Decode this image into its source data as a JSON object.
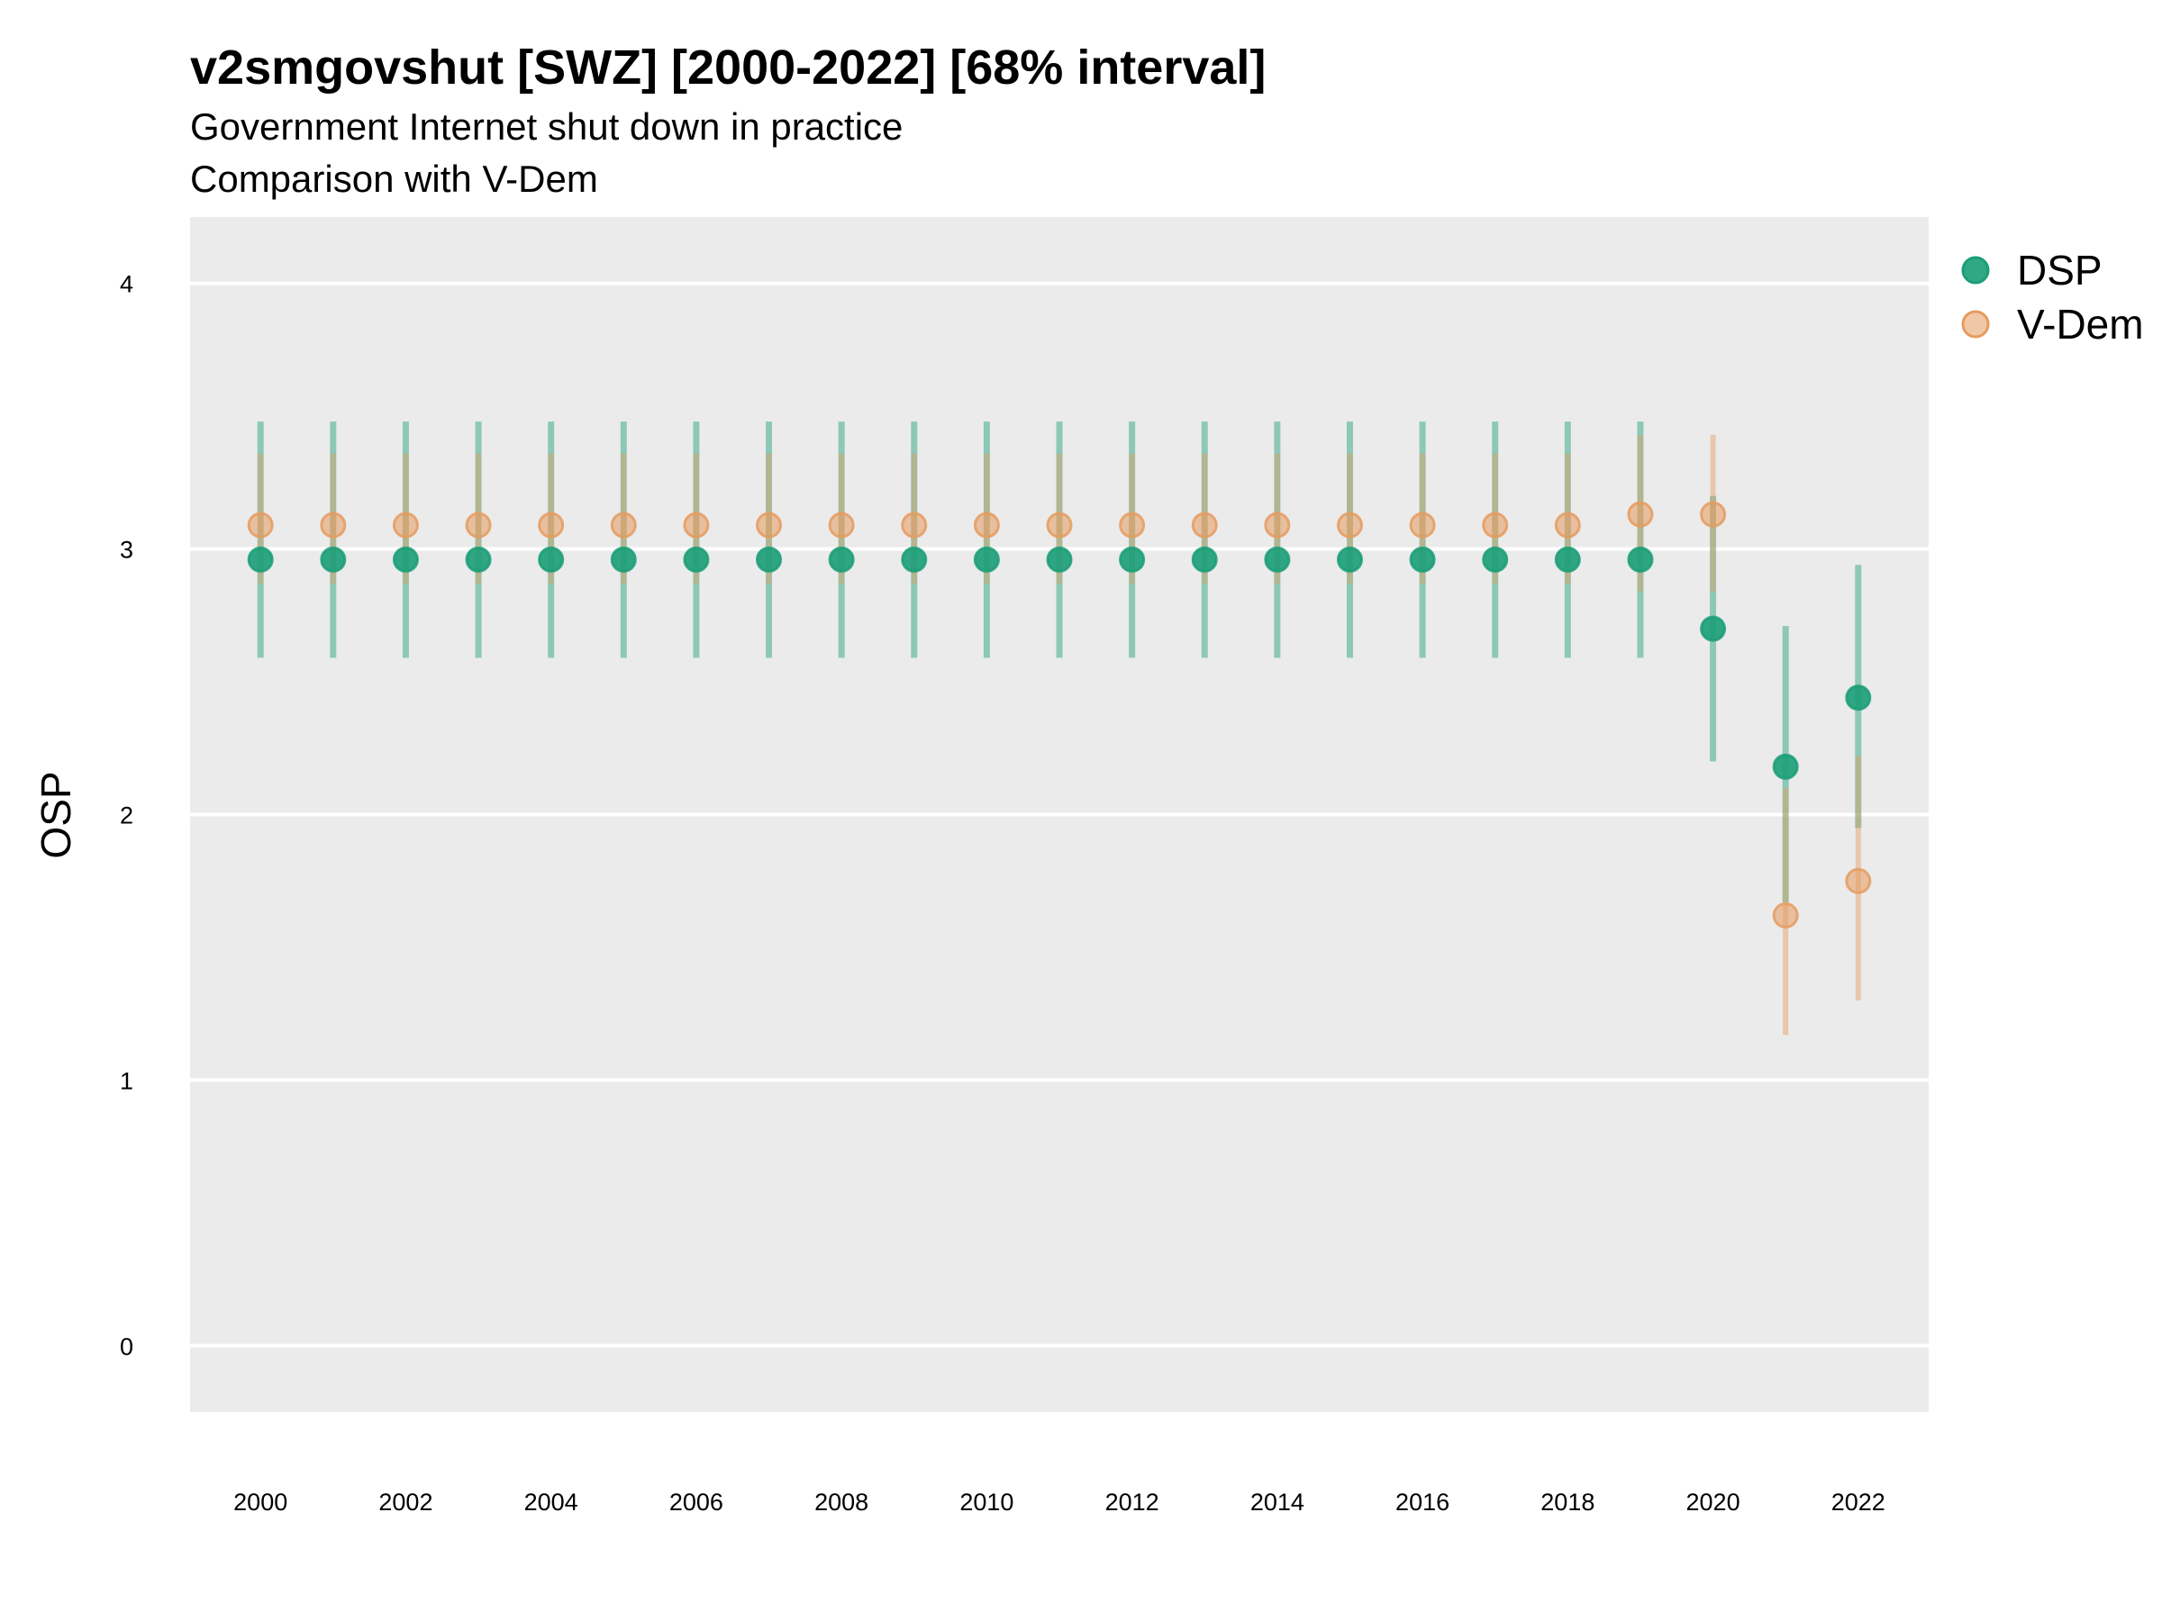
{
  "chart_data": {
    "type": "scatter",
    "title": "v2smgovshut [SWZ] [2000-2022] [68% interval]",
    "subtitle": "Government Internet shut down in practice",
    "subtitle2": "Comparison with V-Dem",
    "xlabel": "",
    "ylabel": "OSP",
    "ylim": [
      -0.25,
      4.25
    ],
    "yticks": [
      "0",
      "1",
      "2",
      "3",
      "4"
    ],
    "xticks": [
      "2000",
      "2002",
      "2004",
      "2006",
      "2008",
      "2010",
      "2012",
      "2014",
      "2016",
      "2018",
      "2020",
      "2022"
    ],
    "grid": true,
    "legend_position": "right",
    "x": [
      2000,
      2001,
      2002,
      2003,
      2004,
      2005,
      2006,
      2007,
      2008,
      2009,
      2010,
      2011,
      2012,
      2013,
      2014,
      2015,
      2016,
      2017,
      2018,
      2019,
      2020,
      2021,
      2022
    ],
    "series": [
      {
        "name": "V-Dem",
        "color": "#E59B5F",
        "values": [
          3.09,
          3.09,
          3.09,
          3.09,
          3.09,
          3.09,
          3.09,
          3.09,
          3.09,
          3.09,
          3.09,
          3.09,
          3.09,
          3.09,
          3.09,
          3.09,
          3.09,
          3.09,
          3.09,
          3.13,
          3.13,
          1.62,
          1.75
        ],
        "lower": [
          2.87,
          2.87,
          2.87,
          2.87,
          2.87,
          2.87,
          2.87,
          2.87,
          2.87,
          2.87,
          2.87,
          2.87,
          2.87,
          2.87,
          2.87,
          2.87,
          2.87,
          2.87,
          2.87,
          2.84,
          2.84,
          1.17,
          1.3
        ],
        "upper": [
          3.36,
          3.36,
          3.36,
          3.36,
          3.36,
          3.36,
          3.36,
          3.36,
          3.36,
          3.36,
          3.36,
          3.36,
          3.36,
          3.36,
          3.36,
          3.36,
          3.36,
          3.36,
          3.36,
          3.43,
          3.43,
          2.1,
          2.22
        ]
      },
      {
        "name": "DSP",
        "color": "#1B9E77",
        "values": [
          2.96,
          2.96,
          2.96,
          2.96,
          2.96,
          2.96,
          2.96,
          2.96,
          2.96,
          2.96,
          2.96,
          2.96,
          2.96,
          2.96,
          2.96,
          2.96,
          2.96,
          2.96,
          2.96,
          2.96,
          2.7,
          2.18,
          2.44
        ],
        "lower": [
          2.59,
          2.59,
          2.59,
          2.59,
          2.59,
          2.59,
          2.59,
          2.59,
          2.59,
          2.59,
          2.59,
          2.59,
          2.59,
          2.59,
          2.59,
          2.59,
          2.59,
          2.59,
          2.59,
          2.59,
          2.2,
          1.67,
          1.95
        ],
        "upper": [
          3.48,
          3.48,
          3.48,
          3.48,
          3.48,
          3.48,
          3.48,
          3.48,
          3.48,
          3.48,
          3.48,
          3.48,
          3.48,
          3.48,
          3.48,
          3.48,
          3.48,
          3.48,
          3.48,
          3.48,
          3.2,
          2.71,
          2.94
        ]
      }
    ],
    "legend": [
      {
        "label": "DSP",
        "color": "#1B9E77"
      },
      {
        "label": "V-Dem",
        "color": "#E59B5F"
      }
    ],
    "panel_background": "#EBEBEB",
    "grid_color": "#FFFFFF"
  }
}
